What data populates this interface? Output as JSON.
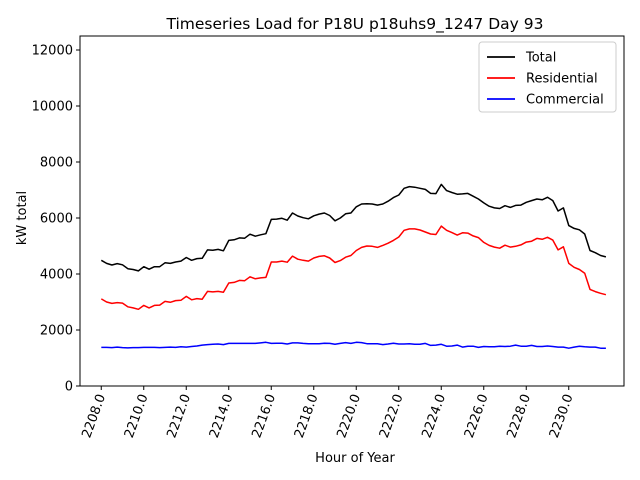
{
  "chart_data": {
    "type": "line",
    "title": "Timeseries Load for P18U p18uhs9_1247  Day 93",
    "xlabel": "Hour of Year",
    "ylabel": "kW total",
    "xlim": [
      2207.0,
      2232.6
    ],
    "ylim": [
      0,
      12500
    ],
    "x_ticks": [
      "2208.0",
      "2210.0",
      "2212.0",
      "2214.0",
      "2216.0",
      "2218.0",
      "2220.0",
      "2222.0",
      "2224.0",
      "2226.0",
      "2228.0",
      "2230.0"
    ],
    "y_ticks": [
      "0",
      "2000",
      "4000",
      "6000",
      "8000",
      "10000",
      "12000"
    ],
    "legend_position": "top-right",
    "x": [
      2208.0,
      2208.25,
      2208.5,
      2208.75,
      2209.0,
      2209.25,
      2209.5,
      2209.75,
      2210.0,
      2210.25,
      2210.5,
      2210.75,
      2211.0,
      2211.25,
      2211.5,
      2211.75,
      2212.0,
      2212.25,
      2212.5,
      2212.75,
      2213.0,
      2213.25,
      2213.5,
      2213.75,
      2214.0,
      2214.25,
      2214.5,
      2214.75,
      2215.0,
      2215.25,
      2215.5,
      2215.75,
      2216.0,
      2216.25,
      2216.5,
      2216.75,
      2217.0,
      2217.25,
      2217.5,
      2217.75,
      2218.0,
      2218.25,
      2218.5,
      2218.75,
      2219.0,
      2219.25,
      2219.5,
      2219.75,
      2220.0,
      2220.25,
      2220.5,
      2220.75,
      2221.0,
      2221.25,
      2221.5,
      2221.75,
      2222.0,
      2222.25,
      2222.5,
      2222.75,
      2223.0,
      2223.25,
      2223.5,
      2223.75,
      2224.0,
      2224.25,
      2224.5,
      2224.75,
      2225.0,
      2225.25,
      2225.5,
      2225.75,
      2226.0,
      2226.25,
      2226.5,
      2226.75,
      2227.0,
      2227.25,
      2227.5,
      2227.75,
      2228.0,
      2228.25,
      2228.5,
      2228.75,
      2229.0,
      2229.25,
      2229.5,
      2229.75,
      2230.0,
      2230.25,
      2230.5,
      2230.75,
      2231.0,
      2231.25,
      2231.5,
      2231.75
    ],
    "series": [
      {
        "name": "Total",
        "color": "#000000",
        "values": [
          4490,
          4380,
          4320,
          4370,
          4330,
          4190,
          4160,
          4110,
          4260,
          4170,
          4260,
          4260,
          4400,
          4380,
          4430,
          4460,
          4590,
          4490,
          4550,
          4560,
          4860,
          4850,
          4880,
          4830,
          5200,
          5220,
          5290,
          5280,
          5420,
          5350,
          5400,
          5440,
          5950,
          5960,
          5990,
          5920,
          6180,
          6070,
          6010,
          5970,
          6080,
          6140,
          6180,
          6090,
          5900,
          6000,
          6150,
          6180,
          6400,
          6500,
          6510,
          6500,
          6460,
          6500,
          6600,
          6730,
          6820,
          7060,
          7120,
          7100,
          7060,
          7020,
          6880,
          6870,
          7200,
          6980,
          6910,
          6850,
          6860,
          6880,
          6780,
          6680,
          6540,
          6420,
          6360,
          6340,
          6440,
          6380,
          6450,
          6460,
          6560,
          6620,
          6680,
          6650,
          6740,
          6620,
          6250,
          6360,
          5730,
          5630,
          5580,
          5430,
          4840,
          4760,
          4660,
          4610
        ]
      },
      {
        "name": "Residential",
        "color": "#ff0000",
        "values": [
          3110,
          3000,
          2950,
          2980,
          2960,
          2830,
          2790,
          2740,
          2880,
          2790,
          2880,
          2890,
          3020,
          2990,
          3050,
          3060,
          3200,
          3080,
          3120,
          3100,
          3380,
          3360,
          3380,
          3350,
          3680,
          3700,
          3770,
          3760,
          3900,
          3830,
          3860,
          3880,
          4430,
          4430,
          4460,
          4420,
          4640,
          4530,
          4490,
          4460,
          4570,
          4630,
          4650,
          4570,
          4410,
          4480,
          4600,
          4660,
          4840,
          4950,
          5000,
          4990,
          4950,
          5020,
          5100,
          5200,
          5320,
          5560,
          5610,
          5610,
          5570,
          5500,
          5430,
          5410,
          5710,
          5560,
          5480,
          5390,
          5470,
          5460,
          5360,
          5300,
          5130,
          5020,
          4960,
          4920,
          5030,
          4960,
          4990,
          5040,
          5140,
          5170,
          5270,
          5240,
          5310,
          5210,
          4860,
          4970,
          4380,
          4240,
          4160,
          4030,
          3450,
          3370,
          3310,
          3260
        ]
      },
      {
        "name": "Commercial",
        "color": "#0000ff",
        "values": [
          1380,
          1380,
          1370,
          1390,
          1370,
          1360,
          1370,
          1370,
          1380,
          1380,
          1380,
          1370,
          1380,
          1390,
          1380,
          1400,
          1390,
          1410,
          1430,
          1460,
          1480,
          1490,
          1500,
          1480,
          1520,
          1520,
          1520,
          1520,
          1520,
          1520,
          1540,
          1560,
          1520,
          1530,
          1530,
          1500,
          1540,
          1540,
          1520,
          1510,
          1510,
          1510,
          1530,
          1520,
          1490,
          1520,
          1550,
          1520,
          1560,
          1550,
          1510,
          1510,
          1510,
          1480,
          1500,
          1530,
          1500,
          1500,
          1510,
          1490,
          1490,
          1520,
          1450,
          1460,
          1490,
          1420,
          1430,
          1460,
          1390,
          1420,
          1420,
          1380,
          1410,
          1400,
          1400,
          1420,
          1410,
          1420,
          1460,
          1420,
          1420,
          1450,
          1410,
          1410,
          1430,
          1410,
          1390,
          1390,
          1350,
          1390,
          1420,
          1400,
          1390,
          1390,
          1350,
          1350
        ]
      }
    ]
  }
}
